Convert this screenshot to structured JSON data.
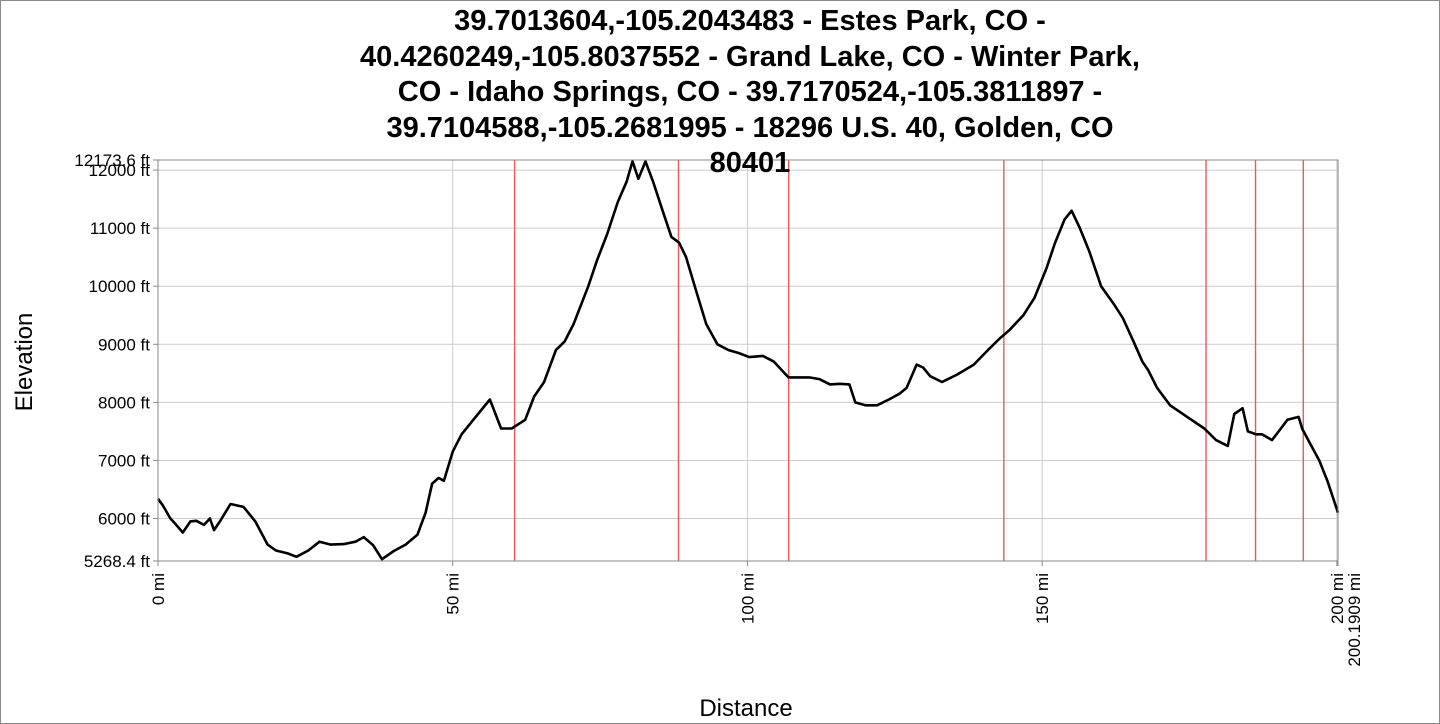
{
  "chart_data": {
    "type": "line",
    "title_lines": [
      "39.7013604,-105.2043483 - Estes Park, CO -",
      "40.4260249,-105.8037552 - Grand Lake, CO - Winter Park,",
      "CO - Idaho Springs, CO - 39.7170524,-105.3811897 -",
      "39.7104588,-105.2681995 - 18296 U.S. 40, Golden, CO",
      "80401"
    ],
    "xlabel": "Distance",
    "ylabel": "Elevation",
    "xlim": [
      0,
      200.1909
    ],
    "ylim": [
      5268.4,
      12173.6
    ],
    "grid": true,
    "x_ticks": [
      {
        "value": 0,
        "label": "0 mi"
      },
      {
        "value": 50,
        "label": "50 mi"
      },
      {
        "value": 100,
        "label": "100 mi"
      },
      {
        "value": 150,
        "label": "150 mi"
      },
      {
        "value": 200,
        "label": "200 mi"
      },
      {
        "value": 200.1909,
        "label": "200.1909 mi"
      }
    ],
    "y_ticks": [
      {
        "value": 5268.4,
        "label": "5268.4 ft"
      },
      {
        "value": 6000,
        "label": "6000 ft"
      },
      {
        "value": 7000,
        "label": "7000 ft"
      },
      {
        "value": 8000,
        "label": "8000 ft"
      },
      {
        "value": 9000,
        "label": "9000 ft"
      },
      {
        "value": 10000,
        "label": "10000 ft"
      },
      {
        "value": 11000,
        "label": "11000 ft"
      },
      {
        "value": 12000,
        "label": "12000 ft"
      },
      {
        "value": 12173.6,
        "label": "12173.6 ft"
      }
    ],
    "waypoint_markers_x": [
      60.5,
      88.3,
      107.0,
      143.5,
      177.8,
      186.2,
      194.3
    ],
    "colors": {
      "line": "#000000",
      "grid": "#cccccc",
      "markers": "#e85a5a",
      "axis": "#888888"
    },
    "series": [
      {
        "x": [
          0,
          0.8,
          2.1,
          3.0,
          4.2,
          5.5,
          6.5,
          7.8,
          8.8,
          9.5,
          10.5,
          12.3,
          14.5,
          16.5,
          18.6,
          20.0,
          22.0,
          23.5,
          25.5,
          27.4,
          29.3,
          31.5,
          33.5,
          34.9,
          36.5,
          38.0,
          40.0,
          42.0,
          44.0,
          45.4,
          46.5,
          47.6,
          48.5,
          50.0,
          51.5,
          53.5,
          56.3,
          58.2,
          60.0,
          62.3,
          63.8,
          65.5,
          67.5,
          69.0,
          70.5,
          73.0,
          74.5,
          76.2,
          78.0,
          79.5,
          80.5,
          81.5,
          82.7,
          84.0,
          85.6,
          87.1,
          88.4,
          89.6,
          91.2,
          93.0,
          94.9,
          96.8,
          98.5,
          100.3,
          102.6,
          104.5,
          106.3,
          107.0,
          108.5,
          110.5,
          112.2,
          114.0,
          115.7,
          117.3,
          118.3,
          120.0,
          122.0,
          124.0,
          125.8,
          127.0,
          128.7,
          129.8,
          131.0,
          133.0,
          135.6,
          138.4,
          140.8,
          142.8,
          144.5,
          146.8,
          148.7,
          150.7,
          152.2,
          153.8,
          155.0,
          156.4,
          158.0,
          160.0,
          162.1,
          163.7,
          165.5,
          167.0,
          168.0,
          169.5,
          171.7,
          174.6,
          177.5,
          179.5,
          181.5,
          182.6,
          184.0,
          184.9,
          186.3,
          187.3,
          189.0,
          190.5,
          191.6,
          193.5,
          194.1,
          195.4,
          197.0,
          198.4,
          200.19
        ],
        "y": [
          6340,
          6230,
          6000,
          5900,
          5760,
          5950,
          5960,
          5890,
          6000,
          5800,
          5950,
          6250,
          6200,
          5950,
          5550,
          5450,
          5400,
          5340,
          5450,
          5600,
          5550,
          5560,
          5600,
          5680,
          5540,
          5300,
          5440,
          5550,
          5720,
          6100,
          6600,
          6700,
          6650,
          7150,
          7450,
          7700,
          8050,
          7550,
          7550,
          7700,
          8100,
          8350,
          8900,
          9050,
          9350,
          10000,
          10450,
          10900,
          11450,
          11800,
          12150,
          11850,
          12150,
          11800,
          11300,
          10850,
          10750,
          10500,
          9950,
          9350,
          9000,
          8900,
          8850,
          8780,
          8800,
          8700,
          8500,
          8430,
          8430,
          8430,
          8400,
          8310,
          8320,
          8310,
          8000,
          7950,
          7950,
          8050,
          8150,
          8250,
          8650,
          8600,
          8450,
          8350,
          8480,
          8650,
          8900,
          9100,
          9250,
          9500,
          9800,
          10300,
          10750,
          11150,
          11300,
          11000,
          10600,
          10000,
          9700,
          9450,
          9050,
          8700,
          8550,
          8250,
          7950,
          7750,
          7550,
          7350,
          7250,
          7800,
          7900,
          7500,
          7450,
          7450,
          7350,
          7550,
          7700,
          7750,
          7550,
          7300,
          7000,
          6650,
          6100
        ]
      }
    ]
  }
}
